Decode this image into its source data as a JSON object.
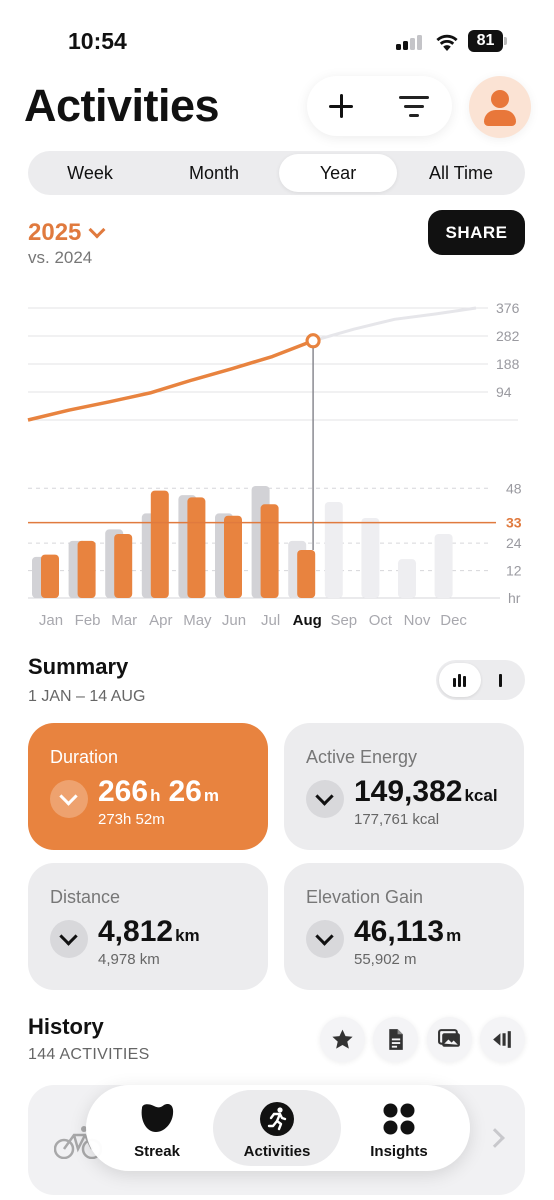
{
  "status_bar": {
    "time": "10:54",
    "battery": "81"
  },
  "header": {
    "title": "Activities"
  },
  "periods": [
    "Week",
    "Month",
    "Year",
    "All Time"
  ],
  "active_period": "Year",
  "year_selector": {
    "year": "2025",
    "compare": "vs. 2024"
  },
  "share_label": "SHARE",
  "chart_data": {
    "type": "bar+line",
    "categories": [
      "Jan",
      "Feb",
      "Mar",
      "Apr",
      "May",
      "Jun",
      "Jul",
      "Aug",
      "Sep",
      "Oct",
      "Nov",
      "Dec"
    ],
    "selected_category": "Aug",
    "bars": {
      "series": [
        {
          "name": "2025",
          "color": "#e8833f",
          "values": [
            19,
            25,
            28,
            47,
            44,
            36,
            41,
            21,
            null,
            null,
            null,
            null
          ]
        },
        {
          "name": "2024",
          "color": "#d2d2d6",
          "values": [
            18,
            25,
            30,
            37,
            45,
            37,
            49,
            25,
            42,
            35,
            17,
            28
          ]
        }
      ],
      "y_ticks": [
        "48",
        "33",
        "24",
        "12",
        "hr"
      ],
      "average_line": 33,
      "ylim": [
        0,
        56
      ]
    },
    "cumulative_line": {
      "series": [
        {
          "name": "2025",
          "color": "#e8833f",
          "values": [
            0,
            33,
            61,
            91,
            133,
            172,
            213,
            266
          ]
        },
        {
          "name": "2024",
          "color": "#e6e6ea",
          "values": [
            0,
            33,
            61,
            91,
            133,
            172,
            213,
            266,
            305,
            338,
            356,
            376
          ]
        }
      ],
      "y_ticks": [
        "376",
        "282",
        "188",
        "94"
      ],
      "ylim": [
        0,
        376
      ]
    }
  },
  "summary": {
    "title": "Summary",
    "range": "1 JAN – 14 AUG",
    "cards": [
      {
        "label": "Duration",
        "value_parts": [
          {
            "num": "266",
            "unit": "h"
          },
          {
            "num": "26",
            "unit": "m"
          }
        ],
        "prev": "273h 52m",
        "highlight": true
      },
      {
        "label": "Active Energy",
        "value_parts": [
          {
            "num": "149,382",
            "unit": "kcal"
          }
        ],
        "prev": "177,761 kcal",
        "highlight": false
      },
      {
        "label": "Distance",
        "value_parts": [
          {
            "num": "4,812",
            "unit": "km"
          }
        ],
        "prev": "4,978 km",
        "highlight": false
      },
      {
        "label": "Elevation Gain",
        "value_parts": [
          {
            "num": "46,113",
            "unit": "m"
          }
        ],
        "prev": "55,902 m",
        "highlight": false
      }
    ]
  },
  "history": {
    "title": "History",
    "count": "144 ACTIVITIES"
  },
  "tabs": [
    {
      "label": "Streak",
      "icon": "streak-icon"
    },
    {
      "label": "Activities",
      "icon": "running-icon"
    },
    {
      "label": "Insights",
      "icon": "grid-icon"
    }
  ],
  "active_tab": "Activities"
}
